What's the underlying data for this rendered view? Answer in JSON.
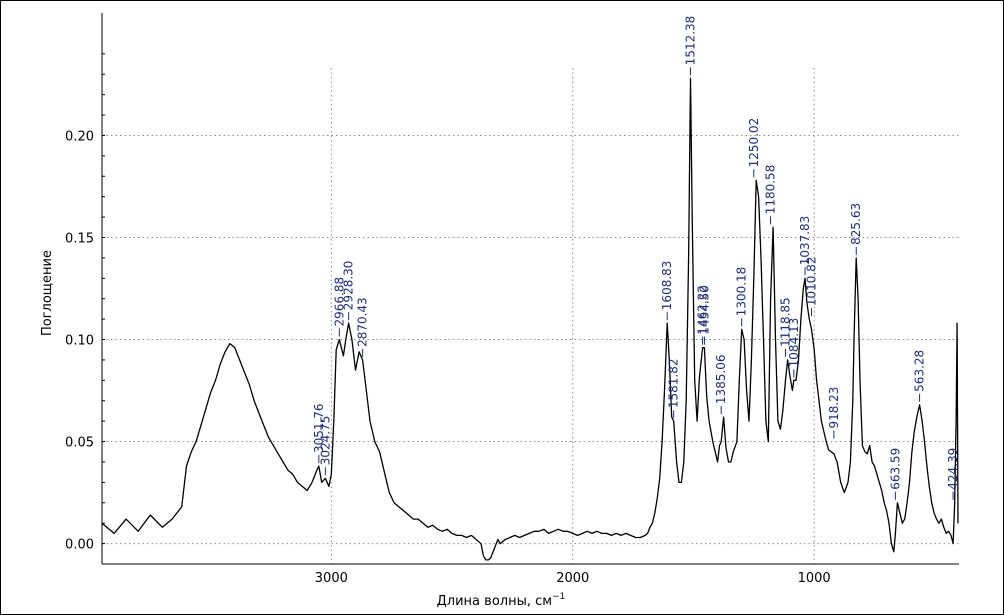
{
  "chart_data": {
    "type": "line",
    "title": "",
    "xlabel": "Длина волны, см",
    "xlabel_superscript": "−1",
    "ylabel": "Поглощение",
    "xlim": [
      3950,
      400
    ],
    "ylim": [
      -0.01,
      0.26
    ],
    "x_reversed": true,
    "grid": true,
    "x_ticks": [
      {
        "value": 3000,
        "label": "3000"
      },
      {
        "value": 2000,
        "label": "2000"
      },
      {
        "value": 1000,
        "label": "1000"
      }
    ],
    "y_ticks": [
      {
        "value": 0.0,
        "label": "0.00"
      },
      {
        "value": 0.05,
        "label": "0.05"
      },
      {
        "value": 0.1,
        "label": "0.10"
      },
      {
        "value": 0.15,
        "label": "0.15"
      },
      {
        "value": 0.2,
        "label": "0.20"
      }
    ],
    "series": [
      {
        "color": "#000000",
        "x": [
          3950,
          3900,
          3850,
          3800,
          3750,
          3700,
          3660,
          3620,
          3600,
          3580,
          3560,
          3540,
          3520,
          3500,
          3480,
          3460,
          3440,
          3420,
          3400,
          3380,
          3360,
          3340,
          3320,
          3300,
          3280,
          3260,
          3240,
          3220,
          3200,
          3180,
          3160,
          3140,
          3120,
          3100,
          3080,
          3060,
          3051.76,
          3040,
          3024.75,
          3010,
          3000,
          2990,
          2980,
          2966.88,
          2950,
          2940,
          2928.3,
          2915,
          2900,
          2885,
          2870.43,
          2860,
          2840,
          2820,
          2800,
          2780,
          2760,
          2740,
          2720,
          2700,
          2680,
          2660,
          2640,
          2620,
          2600,
          2580,
          2560,
          2540,
          2520,
          2500,
          2480,
          2460,
          2440,
          2420,
          2400,
          2380,
          2370,
          2360,
          2350,
          2340,
          2330,
          2320,
          2310,
          2300,
          2280,
          2260,
          2240,
          2220,
          2200,
          2180,
          2160,
          2140,
          2120,
          2100,
          2080,
          2060,
          2040,
          2020,
          2000,
          1980,
          1960,
          1940,
          1920,
          1900,
          1880,
          1860,
          1840,
          1820,
          1800,
          1780,
          1760,
          1740,
          1720,
          1700,
          1690,
          1680,
          1670,
          1660,
          1650,
          1640,
          1630,
          1620,
          1608.83,
          1600,
          1590,
          1581.82,
          1570,
          1560,
          1550,
          1540,
          1530,
          1520,
          1512.38,
          1505,
          1495,
          1485,
          1475,
          1462.22,
          1454.5,
          1445,
          1435,
          1420,
          1410,
          1400,
          1392,
          1385.06,
          1375,
          1365,
          1355,
          1345,
          1335,
          1320,
          1310,
          1300.18,
          1290,
          1280,
          1270,
          1260,
          1250.02,
          1240,
          1230,
          1220,
          1210,
          1200,
          1190,
          1180.58,
          1170,
          1160,
          1150,
          1140,
          1130,
          1118.85,
          1110,
          1100,
          1090,
          1084.13,
          1075,
          1065,
          1055,
          1045,
          1037.83,
          1030,
          1020,
          1010.82,
          1000,
          990,
          980,
          970,
          960,
          950,
          940,
          930,
          918.23,
          905,
          890,
          875,
          860,
          850,
          840,
          835,
          825.63,
          818,
          810,
          800,
          790,
          780,
          770,
          760,
          750,
          740,
          730,
          720,
          710,
          700,
          690,
          680,
          670,
          663.59,
          655,
          645,
          635,
          625,
          615,
          605,
          595,
          585,
          575,
          563.28,
          553,
          543,
          533,
          523,
          513,
          503,
          493,
          483,
          473,
          463,
          453,
          443,
          433,
          424.39,
          418,
          412,
          408,
          404
        ],
        "y": [
          0.01,
          0.005,
          0.012,
          0.006,
          0.014,
          0.008,
          0.012,
          0.018,
          0.038,
          0.045,
          0.05,
          0.058,
          0.066,
          0.074,
          0.08,
          0.088,
          0.094,
          0.098,
          0.096,
          0.09,
          0.084,
          0.078,
          0.07,
          0.064,
          0.058,
          0.052,
          0.048,
          0.044,
          0.04,
          0.036,
          0.034,
          0.03,
          0.028,
          0.026,
          0.03,
          0.036,
          0.038,
          0.03,
          0.032,
          0.028,
          0.034,
          0.06,
          0.095,
          0.1,
          0.092,
          0.1,
          0.108,
          0.1,
          0.085,
          0.094,
          0.09,
          0.08,
          0.06,
          0.05,
          0.045,
          0.035,
          0.025,
          0.02,
          0.018,
          0.016,
          0.014,
          0.012,
          0.012,
          0.01,
          0.008,
          0.009,
          0.007,
          0.006,
          0.007,
          0.005,
          0.004,
          0.004,
          0.003,
          0.004,
          0.002,
          0.0,
          -0.006,
          -0.008,
          -0.008,
          -0.007,
          -0.004,
          -0.001,
          0.002,
          0.0,
          0.002,
          0.003,
          0.004,
          0.003,
          0.004,
          0.005,
          0.006,
          0.006,
          0.007,
          0.005,
          0.006,
          0.007,
          0.006,
          0.006,
          0.005,
          0.004,
          0.005,
          0.006,
          0.005,
          0.006,
          0.005,
          0.005,
          0.004,
          0.005,
          0.004,
          0.005,
          0.004,
          0.003,
          0.003,
          0.004,
          0.005,
          0.008,
          0.01,
          0.015,
          0.022,
          0.032,
          0.05,
          0.075,
          0.108,
          0.09,
          0.062,
          0.06,
          0.04,
          0.03,
          0.03,
          0.04,
          0.07,
          0.14,
          0.228,
          0.16,
          0.08,
          0.06,
          0.082,
          0.096,
          0.096,
          0.072,
          0.06,
          0.05,
          0.045,
          0.04,
          0.048,
          0.05,
          0.062,
          0.047,
          0.04,
          0.04,
          0.045,
          0.05,
          0.08,
          0.105,
          0.1,
          0.075,
          0.06,
          0.09,
          0.13,
          0.178,
          0.17,
          0.14,
          0.1,
          0.06,
          0.05,
          0.12,
          0.155,
          0.1,
          0.06,
          0.056,
          0.065,
          0.08,
          0.09,
          0.082,
          0.075,
          0.08,
          0.08,
          0.09,
          0.11,
          0.125,
          0.13,
          0.118,
          0.11,
          0.105,
          0.095,
          0.08,
          0.07,
          0.06,
          0.055,
          0.05,
          0.046,
          0.045,
          0.044,
          0.04,
          0.03,
          0.025,
          0.03,
          0.04,
          0.07,
          0.1,
          0.14,
          0.12,
          0.08,
          0.048,
          0.045,
          0.044,
          0.048,
          0.04,
          0.038,
          0.034,
          0.03,
          0.026,
          0.02,
          0.016,
          0.01,
          0.0,
          -0.004,
          0.005,
          0.02,
          0.015,
          0.01,
          0.012,
          0.02,
          0.03,
          0.045,
          0.055,
          0.062,
          0.068,
          0.06,
          0.05,
          0.038,
          0.028,
          0.02,
          0.015,
          0.012,
          0.01,
          0.012,
          0.008,
          0.005,
          0.006,
          0.004,
          0.0,
          0.02,
          0.06,
          0.108,
          0.01
        ]
      }
    ],
    "peak_labels": [
      {
        "x": 3051.76,
        "y": 0.038,
        "text": "3051.76"
      },
      {
        "x": 3024.75,
        "y": 0.032,
        "text": "3024.75"
      },
      {
        "x": 2966.88,
        "y": 0.1,
        "text": "2966.88"
      },
      {
        "x": 2928.3,
        "y": 0.108,
        "text": "2928.30"
      },
      {
        "x": 2870.43,
        "y": 0.09,
        "text": "2870.43"
      },
      {
        "x": 1608.83,
        "y": 0.108,
        "text": "1608.83"
      },
      {
        "x": 1581.82,
        "y": 0.06,
        "text": "1581.82"
      },
      {
        "x": 1512.38,
        "y": 0.228,
        "text": "1512.38"
      },
      {
        "x": 1462.22,
        "y": 0.096,
        "text": "1462.22"
      },
      {
        "x": 1454.5,
        "y": 0.096,
        "text": "1454.50"
      },
      {
        "x": 1385.06,
        "y": 0.062,
        "text": "1385.06"
      },
      {
        "x": 1300.18,
        "y": 0.105,
        "text": "1300.18"
      },
      {
        "x": 1250.02,
        "y": 0.178,
        "text": "1250.02"
      },
      {
        "x": 1180.58,
        "y": 0.155,
        "text": "1180.58"
      },
      {
        "x": 1118.85,
        "y": 0.09,
        "text": "1118.85"
      },
      {
        "x": 1084.13,
        "y": 0.08,
        "text": "1084.13"
      },
      {
        "x": 1037.83,
        "y": 0.13,
        "text": "1037.83"
      },
      {
        "x": 1010.82,
        "y": 0.11,
        "text": "1010.82"
      },
      {
        "x": 918.23,
        "y": 0.05,
        "text": "918.23"
      },
      {
        "x": 825.63,
        "y": 0.14,
        "text": "825.63"
      },
      {
        "x": 663.59,
        "y": 0.02,
        "text": "663.59"
      },
      {
        "x": 563.28,
        "y": 0.068,
        "text": "563.28"
      },
      {
        "x": 424.39,
        "y": 0.02,
        "text": "424.39"
      }
    ]
  }
}
